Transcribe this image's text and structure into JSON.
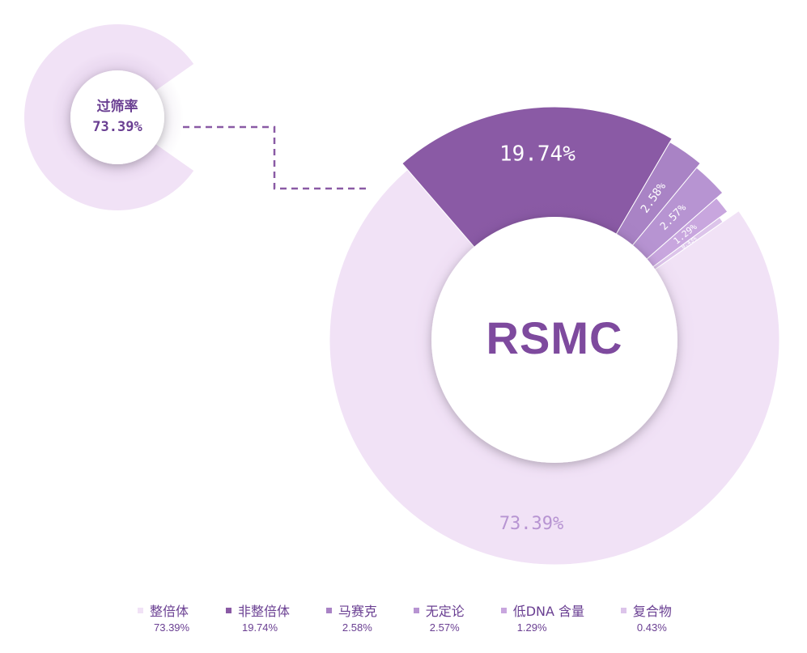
{
  "chart_data": {
    "type": "pie",
    "title": "",
    "center_label": "RSMC",
    "categories": [
      "整倍体",
      "非整倍体",
      "马赛克",
      "无定论",
      "低DNA 含量",
      "复合物"
    ],
    "values": [
      73.39,
      19.74,
      2.58,
      2.57,
      1.29,
      0.43
    ],
    "value_labels": [
      "73.39%",
      "19.74%",
      "2.58%",
      "2.57%",
      "1.29%",
      "0.43%"
    ],
    "colors": [
      "#f1e2f6",
      "#8a5aa5",
      "#a983c5",
      "#b794d2",
      "#c8a6de",
      "#dcc4ea"
    ],
    "legend_position": "bottom",
    "callout": {
      "title": "过筛率",
      "value": "73.39%"
    }
  }
}
